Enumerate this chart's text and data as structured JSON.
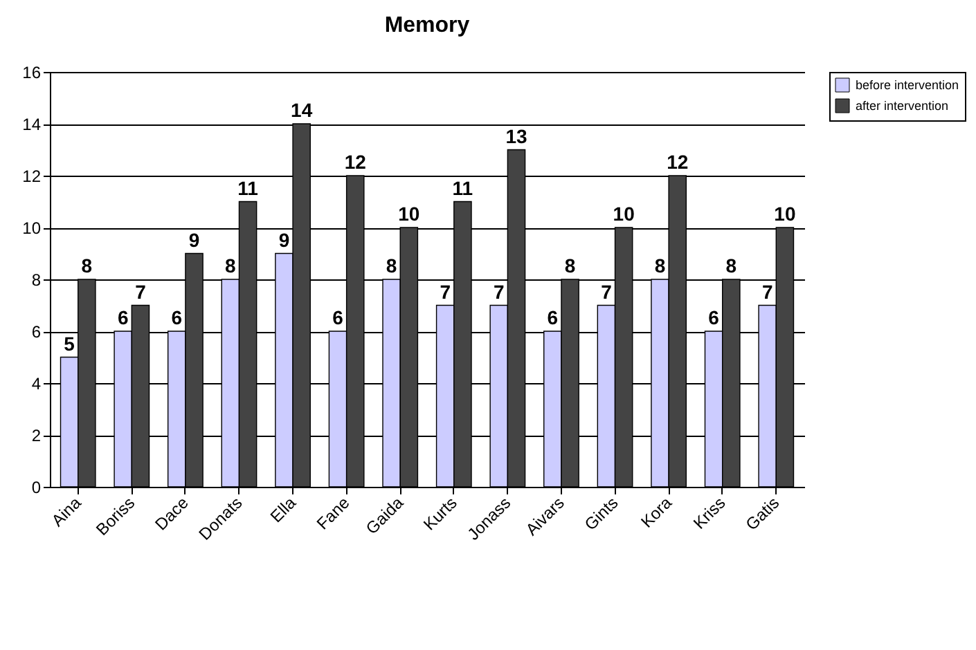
{
  "chart_data": {
    "type": "bar",
    "title": "Memory",
    "categories": [
      "Aina",
      "Boriss",
      "Dace",
      "Donats",
      "Ella",
      "Fane",
      "Gaida",
      "Kurts",
      "Jonass",
      "Aivars",
      "Gints",
      "Kora",
      "Kriss",
      "Gatis"
    ],
    "series": [
      {
        "name": "before intervention",
        "color": "#ccccff",
        "values": [
          5,
          6,
          6,
          8,
          9,
          6,
          8,
          7,
          7,
          6,
          7,
          8,
          6,
          7
        ]
      },
      {
        "name": "after intervention",
        "color": "#444444",
        "values": [
          8,
          7,
          9,
          11,
          14,
          12,
          10,
          11,
          13,
          8,
          10,
          12,
          8,
          10
        ]
      }
    ],
    "ylim": [
      0,
      16
    ],
    "yticks": [
      0,
      2,
      4,
      6,
      8,
      10,
      12,
      14,
      16
    ],
    "grid": "y",
    "legend": "right",
    "data_labels": true
  }
}
